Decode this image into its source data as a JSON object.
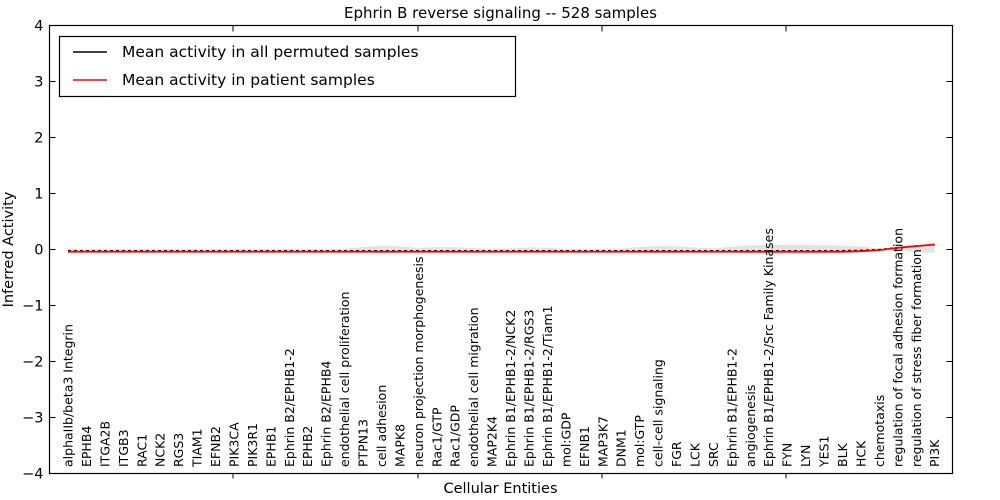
{
  "title": "Ephrin B reverse signaling -- 528 samples",
  "axes": {
    "xlabel": "Cellular Entities",
    "ylabel": "Inferred Activity",
    "yticks": [
      "4",
      "3",
      "2",
      "1",
      "0",
      "−1",
      "−2",
      "−3",
      "−4"
    ]
  },
  "legend": {
    "items": [
      {
        "label": "Mean activity in all permuted samples",
        "color": "#000000"
      },
      {
        "label": "Mean activity in patient samples",
        "color": "#ff0000"
      }
    ]
  },
  "colors": {
    "patient_line": "#ff0000",
    "permuted_line": "#000000",
    "spread_band": "#d9d9d9",
    "frame": "#000000"
  },
  "chart_data": {
    "type": "line",
    "title": "Ephrin B reverse signaling -- 528 samples",
    "xlabel": "Cellular Entities",
    "ylabel": "Inferred Activity",
    "ylim": [
      -4,
      4
    ],
    "grid": false,
    "legend_position": "upper left",
    "categories": [
      "alphaIIb/beta3 Integrin",
      "EPHB4",
      "ITGA2B",
      "ITGB3",
      "RAC1",
      "NCK2",
      "RGS3",
      "TIAM1",
      "EFNB2",
      "PIK3CA",
      "PIK3R1",
      "EPHB1",
      "Ephrin B2/EPHB1-2",
      "EPHB2",
      "Ephrin B2/EPHB4",
      "endothelial cell proliferation",
      "PTPN13",
      "cell adhesion",
      "MAPK8",
      "neuron projection morphogenesis",
      "Rac1/GTP",
      "Rac1/GDP",
      "endothelial cell migration",
      "MAP2K4",
      "Ephrin B1/EPHB1-2/NCK2",
      "Ephrin B1/EPHB1-2/RGS3",
      "Ephrin B1/EPHB1-2/Tiam1",
      "mol:GDP",
      "EFNB1",
      "MAP3K7",
      "DNM1",
      "mol:GTP",
      "cell-cell signaling",
      "FGR",
      "LCK",
      "SRC",
      "Ephrin B1/EPHB1-2",
      "angiogenesis",
      "Ephrin B1/EPHB1-2/Src Family Kinases",
      "FYN",
      "LYN",
      "YES1",
      "BLK",
      "HCK",
      "chemotaxis",
      "regulation of focal adhesion formation",
      "regulation of stress fiber formation",
      "PI3K"
    ],
    "series": [
      {
        "name": "Mean activity in all permuted samples",
        "color": "#000000",
        "style": "dashed",
        "values": [
          -0.02,
          -0.02,
          -0.02,
          -0.02,
          -0.02,
          -0.02,
          -0.02,
          -0.02,
          -0.02,
          -0.02,
          -0.02,
          -0.02,
          -0.02,
          -0.02,
          -0.02,
          -0.02,
          -0.02,
          -0.02,
          -0.02,
          -0.02,
          -0.02,
          -0.02,
          -0.02,
          -0.02,
          -0.02,
          -0.02,
          -0.02,
          -0.02,
          -0.02,
          -0.02,
          -0.02,
          -0.02,
          -0.02,
          -0.02,
          -0.02,
          -0.02,
          -0.02,
          -0.02,
          -0.02,
          -0.02,
          -0.02,
          -0.02,
          -0.02,
          -0.015,
          0.0,
          0.035,
          0.065,
          0.08
        ]
      },
      {
        "name": "Mean activity in patient samples",
        "color": "#ff0000",
        "style": "solid",
        "values": [
          -0.04,
          -0.04,
          -0.04,
          -0.04,
          -0.04,
          -0.04,
          -0.04,
          -0.04,
          -0.04,
          -0.04,
          -0.04,
          -0.04,
          -0.04,
          -0.04,
          -0.04,
          -0.04,
          -0.04,
          -0.04,
          -0.04,
          -0.04,
          -0.04,
          -0.04,
          -0.04,
          -0.04,
          -0.04,
          -0.04,
          -0.04,
          -0.04,
          -0.04,
          -0.04,
          -0.04,
          -0.04,
          -0.04,
          -0.04,
          -0.04,
          -0.04,
          -0.04,
          -0.04,
          -0.04,
          -0.04,
          -0.04,
          -0.04,
          -0.04,
          -0.03,
          -0.01,
          0.03,
          0.06,
          0.09
        ]
      }
    ],
    "band": {
      "name": "permuted activity spread",
      "color": "#d9d9d9",
      "center": 0.0,
      "half_heights": [
        0.015,
        0.015,
        0.015,
        0.015,
        0.015,
        0.015,
        0.015,
        0.015,
        0.015,
        0.015,
        0.015,
        0.015,
        0.015,
        0.015,
        0.015,
        0.015,
        0.045,
        0.07,
        0.055,
        0.025,
        0.045,
        0.04,
        0.025,
        0.015,
        0.02,
        0.035,
        0.03,
        0.015,
        0.015,
        0.015,
        0.02,
        0.045,
        0.065,
        0.06,
        0.035,
        0.02,
        0.05,
        0.075,
        0.08,
        0.08,
        0.08,
        0.075,
        0.07,
        0.055,
        0.02,
        0.015,
        0.05,
        0.06
      ]
    }
  }
}
